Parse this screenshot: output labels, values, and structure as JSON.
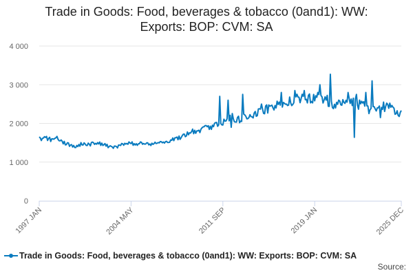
{
  "chart_data": {
    "type": "line",
    "title_lines": [
      "Trade in Goods: Food, beverages & tobacco (0and1): WW:",
      "Exports: BOP: CVM: SA"
    ],
    "xlabel": "",
    "ylabel": "",
    "x_range": [
      "1997 JAN",
      "2025 DEC"
    ],
    "x_tick_labels": [
      "1997 JAN",
      "2004 MAY",
      "2011 SEP",
      "2019 JAN",
      "2025 DEC"
    ],
    "ylim": [
      0,
      4000
    ],
    "y_ticks": [
      0,
      1000,
      2000,
      3000,
      4000
    ],
    "y_tick_labels": [
      "0",
      "1 000",
      "2 000",
      "3 000",
      "4 000"
    ],
    "grid": true,
    "legend_position": "bottom",
    "series": [
      {
        "name": "Trade in Goods: Food, beverages & tobacco (0and1): WW: Exports: BOP: CVM: SA",
        "color": "#0a7bbf",
        "anchors": [
          [
            "1997-01",
            1600
          ],
          [
            "1997-07",
            1620
          ],
          [
            "1998-01",
            1580
          ],
          [
            "1998-06",
            1650
          ],
          [
            "1998-12",
            1500
          ],
          [
            "1999-06",
            1450
          ],
          [
            "1999-12",
            1400
          ],
          [
            "2000-06",
            1480
          ],
          [
            "2001-01",
            1450
          ],
          [
            "2001-06",
            1500
          ],
          [
            "2002-01",
            1470
          ],
          [
            "2002-08",
            1400
          ],
          [
            "2003-01",
            1380
          ],
          [
            "2003-06",
            1420
          ],
          [
            "2004-01",
            1500
          ],
          [
            "2004-05",
            1480
          ],
          [
            "2005-01",
            1470
          ],
          [
            "2005-06",
            1500
          ],
          [
            "2006-01",
            1460
          ],
          [
            "2006-06",
            1520
          ],
          [
            "2007-01",
            1500
          ],
          [
            "2007-06",
            1560
          ],
          [
            "2008-01",
            1600
          ],
          [
            "2008-06",
            1650
          ],
          [
            "2009-01",
            1750
          ],
          [
            "2009-06",
            1800
          ],
          [
            "2010-01",
            1850
          ],
          [
            "2010-06",
            1900
          ],
          [
            "2011-01",
            1950
          ],
          [
            "2011-09",
            2050
          ],
          [
            "2012-01",
            2100
          ],
          [
            "2012-06",
            2150
          ],
          [
            "2013-01",
            2100
          ],
          [
            "2013-06",
            2150
          ],
          [
            "2014-01",
            2200
          ],
          [
            "2014-06",
            2300
          ],
          [
            "2015-01",
            2350
          ],
          [
            "2015-06",
            2400
          ],
          [
            "2016-01",
            2450
          ],
          [
            "2016-06",
            2450
          ],
          [
            "2017-01",
            2550
          ],
          [
            "2017-06",
            2600
          ],
          [
            "2018-01",
            2650
          ],
          [
            "2018-06",
            2600
          ],
          [
            "2019-01",
            2650
          ],
          [
            "2019-06",
            2700
          ],
          [
            "2020-01",
            2600
          ],
          [
            "2020-06",
            2450
          ],
          [
            "2021-01",
            2500
          ],
          [
            "2021-06",
            2600
          ],
          [
            "2022-01",
            2550
          ],
          [
            "2022-06",
            2500
          ],
          [
            "2023-01",
            2450
          ],
          [
            "2023-06",
            2350
          ],
          [
            "2024-01",
            2400
          ],
          [
            "2024-06",
            2430
          ],
          [
            "2025-01",
            2400
          ],
          [
            "2025-06",
            2300
          ],
          [
            "2025-12",
            2250
          ]
        ],
        "spikes": [
          [
            "2011-06",
            2700
          ],
          [
            "2012-02",
            2600
          ],
          [
            "2012-05",
            1900
          ],
          [
            "2013-04",
            2750
          ],
          [
            "2014-10",
            2500
          ],
          [
            "2016-05",
            2800
          ],
          [
            "2017-06",
            2850
          ],
          [
            "2018-03",
            2850
          ],
          [
            "2019-06",
            3000
          ],
          [
            "2020-04",
            3270
          ],
          [
            "2020-09",
            2400
          ],
          [
            "2021-09",
            2800
          ],
          [
            "2022-03",
            1640
          ],
          [
            "2022-05",
            2750
          ],
          [
            "2023-02",
            2800
          ],
          [
            "2023-08",
            3100
          ],
          [
            "2024-03",
            2450
          ],
          [
            "2024-04",
            2150
          ],
          [
            "2025-10",
            2180
          ]
        ]
      }
    ]
  },
  "source_label": "Source:"
}
